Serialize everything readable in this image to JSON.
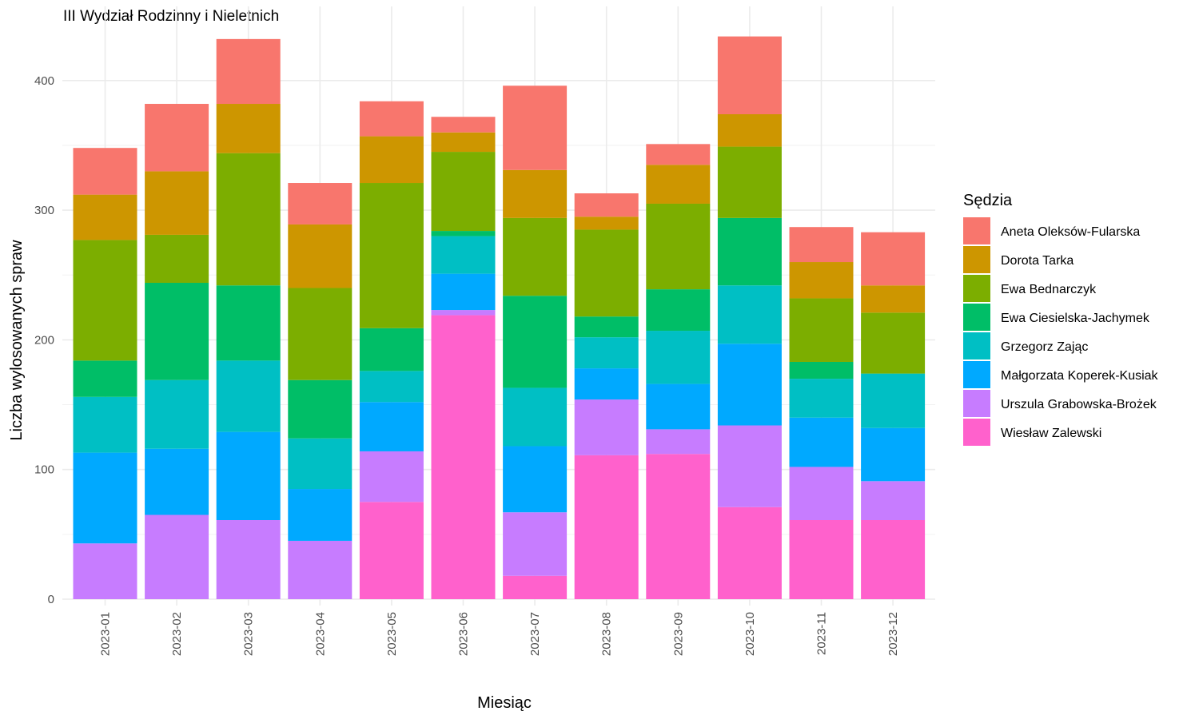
{
  "chart_data": {
    "type": "bar",
    "stacked": true,
    "title": "III Wydział Rodzinny i Nieletnich",
    "xlabel": "Miesiąc",
    "ylabel": "Liczba wylosowanych spraw",
    "ylim": [
      0,
      440
    ],
    "yticks": [
      0,
      100,
      200,
      300,
      400
    ],
    "grid": true,
    "legend_title": "Sędzia",
    "legend_position": "right",
    "categories": [
      "2023-01",
      "2023-02",
      "2023-03",
      "2023-04",
      "2023-05",
      "2023-06",
      "2023-07",
      "2023-08",
      "2023-09",
      "2023-10",
      "2023-11",
      "2023-12"
    ],
    "series": [
      {
        "name": "Wiesław Zalewski",
        "color": "#FF61CC",
        "values": [
          0,
          0,
          0,
          0,
          75,
          219,
          18,
          111,
          112,
          71,
          61,
          61
        ]
      },
      {
        "name": "Urszula Grabowska-Brożek",
        "color": "#C77CFF",
        "values": [
          43,
          65,
          61,
          45,
          39,
          4,
          49,
          43,
          19,
          63,
          41,
          30
        ]
      },
      {
        "name": "Małgorzata Koperek-Kusiak",
        "color": "#00A9FF",
        "values": [
          70,
          51,
          68,
          40,
          38,
          28,
          51,
          24,
          35,
          63,
          38,
          41
        ]
      },
      {
        "name": "Grzegorz Zając",
        "color": "#00BFC4",
        "values": [
          43,
          53,
          55,
          39,
          24,
          29,
          45,
          24,
          41,
          45,
          30,
          42
        ]
      },
      {
        "name": "Ewa Ciesielska-Jachymek",
        "color": "#00BE67",
        "values": [
          28,
          75,
          58,
          45,
          33,
          4,
          71,
          16,
          32,
          52,
          13,
          0
        ]
      },
      {
        "name": "Ewa Bednarczyk",
        "color": "#7CAE00",
        "values": [
          93,
          37,
          102,
          71,
          112,
          61,
          60,
          67,
          66,
          55,
          49,
          47
        ]
      },
      {
        "name": "Dorota Tarka",
        "color": "#CD9600",
        "values": [
          35,
          49,
          38,
          49,
          36,
          15,
          37,
          10,
          30,
          25,
          28,
          21
        ]
      },
      {
        "name": "Aneta Oleksów-Fularska",
        "color": "#F8766D",
        "values": [
          36,
          52,
          50,
          32,
          27,
          12,
          65,
          18,
          16,
          60,
          27,
          41
        ]
      }
    ],
    "legend_order": [
      "Aneta Oleksów-Fularska",
      "Dorota Tarka",
      "Ewa Bednarczyk",
      "Ewa Ciesielska-Jachymek",
      "Grzegorz Zając",
      "Małgorzata Koperek-Kusiak",
      "Urszula Grabowska-Brożek",
      "Wiesław Zalewski"
    ]
  }
}
